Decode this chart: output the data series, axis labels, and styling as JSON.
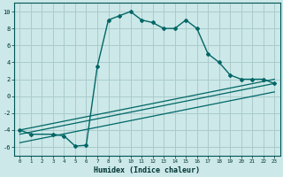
{
  "xlabel": "Humidex (Indice chaleur)",
  "bg_color": "#cce8e8",
  "grid_color": "#aacccc",
  "line_color": "#006666",
  "xlim": [
    -0.5,
    23.5
  ],
  "ylim": [
    -7,
    11
  ],
  "xticks": [
    0,
    1,
    2,
    3,
    4,
    5,
    6,
    7,
    8,
    9,
    10,
    11,
    12,
    13,
    14,
    15,
    16,
    17,
    18,
    19,
    20,
    21,
    22,
    23
  ],
  "yticks": [
    -6,
    -4,
    -2,
    0,
    2,
    4,
    6,
    8,
    10
  ],
  "curve1_x": [
    0,
    1,
    3,
    4,
    5,
    6,
    7,
    8,
    9,
    10,
    11,
    12,
    13,
    14,
    15,
    16,
    17,
    18,
    19,
    20,
    21,
    22,
    23
  ],
  "curve1_y": [
    -4.0,
    -4.5,
    -4.5,
    -4.7,
    -5.9,
    -5.8,
    3.5,
    9.0,
    9.5,
    10.0,
    9.0,
    8.7,
    8.0,
    8.0,
    9.0,
    8.0,
    5.0,
    4.0,
    2.5,
    2.0,
    2.0,
    2.0,
    1.5
  ],
  "line2_x": [
    0,
    23
  ],
  "line2_y": [
    -4.0,
    2.0
  ],
  "line3_x": [
    0,
    23
  ],
  "line3_y": [
    -4.5,
    1.5
  ],
  "line4_x": [
    0,
    23
  ],
  "line4_y": [
    -5.5,
    0.5
  ]
}
